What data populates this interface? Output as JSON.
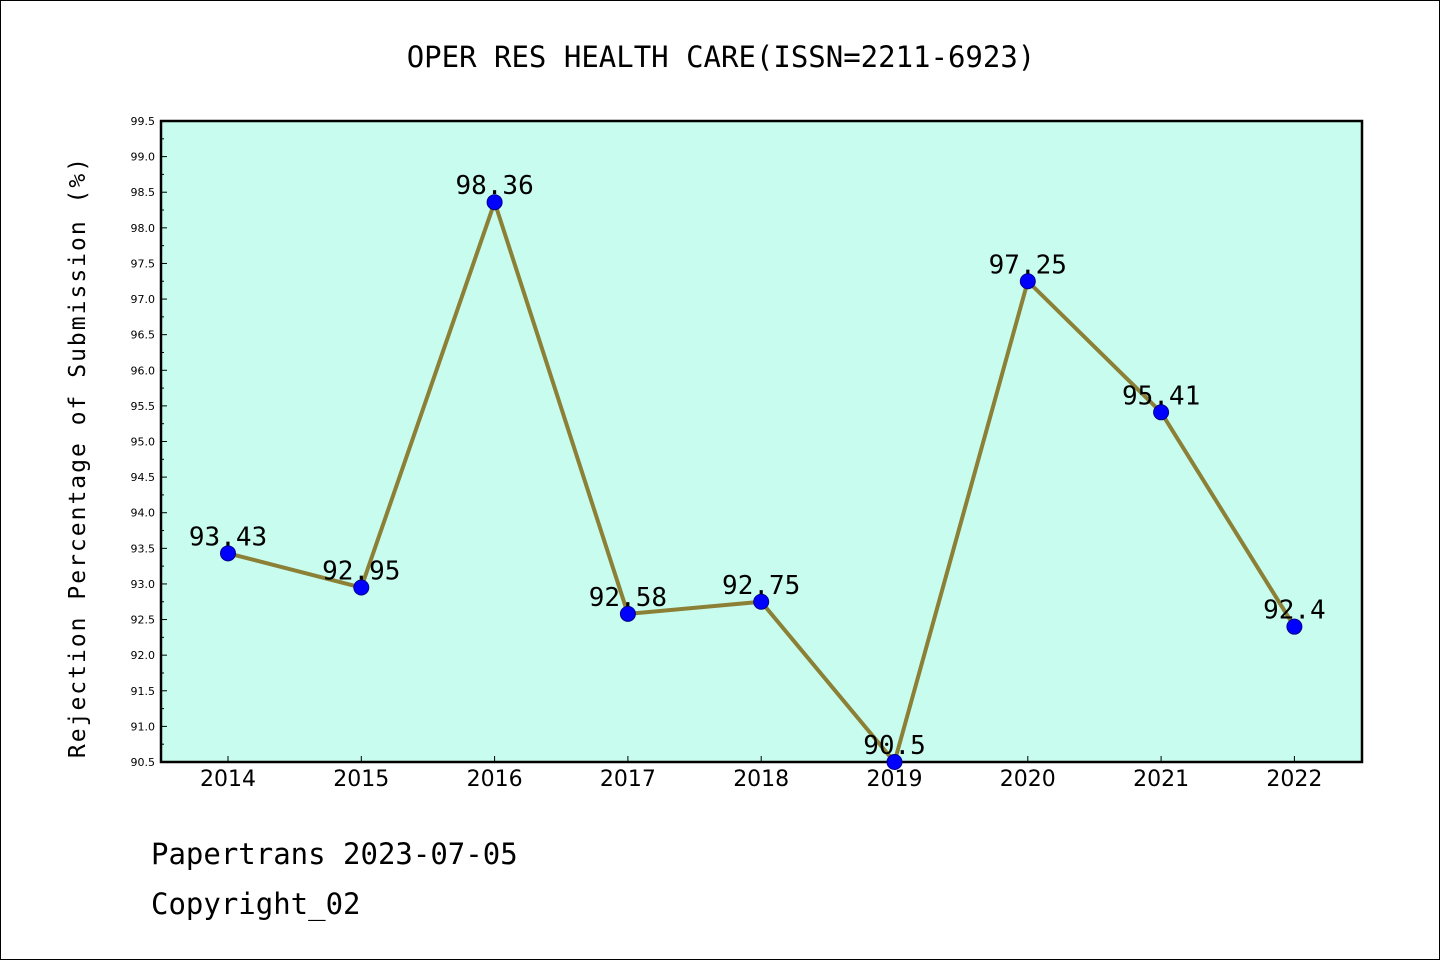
{
  "chart_data": {
    "type": "line",
    "title": "OPER RES HEALTH CARE(ISSN=2211-6923)",
    "xlabel": "",
    "ylabel": "Rejection Percentage of Submission (%)",
    "categories": [
      "2014",
      "2015",
      "2016",
      "2017",
      "2018",
      "2019",
      "2020",
      "2021",
      "2022"
    ],
    "series": [
      {
        "values": [
          93.43,
          92.95,
          98.36,
          92.58,
          92.75,
          90.5,
          97.25,
          95.41,
          92.4
        ],
        "labels": [
          "93.43",
          "92.95",
          "98.36",
          "92.58",
          "92.75",
          "90.5",
          "97.25",
          "95.41",
          "92.4"
        ]
      }
    ],
    "ylim": [
      90.5,
      99.5
    ],
    "yticks": [
      "90.5",
      "91.0",
      "91.5",
      "92.0",
      "92.5",
      "93.0",
      "93.5",
      "94.0",
      "94.5",
      "95.0",
      "95.5",
      "96.0",
      "96.5",
      "97.0",
      "97.5",
      "98.0",
      "98.5",
      "99.0",
      "99.5"
    ],
    "grid": false,
    "legend": "none",
    "colors": {
      "plot_background": "#c8fcee",
      "line": "#8b8036",
      "marker": "#0000ff",
      "axis": "#000000"
    }
  },
  "footer": {
    "line1": "Papertrans 2023-07-05",
    "line2": "Copyright_02"
  }
}
